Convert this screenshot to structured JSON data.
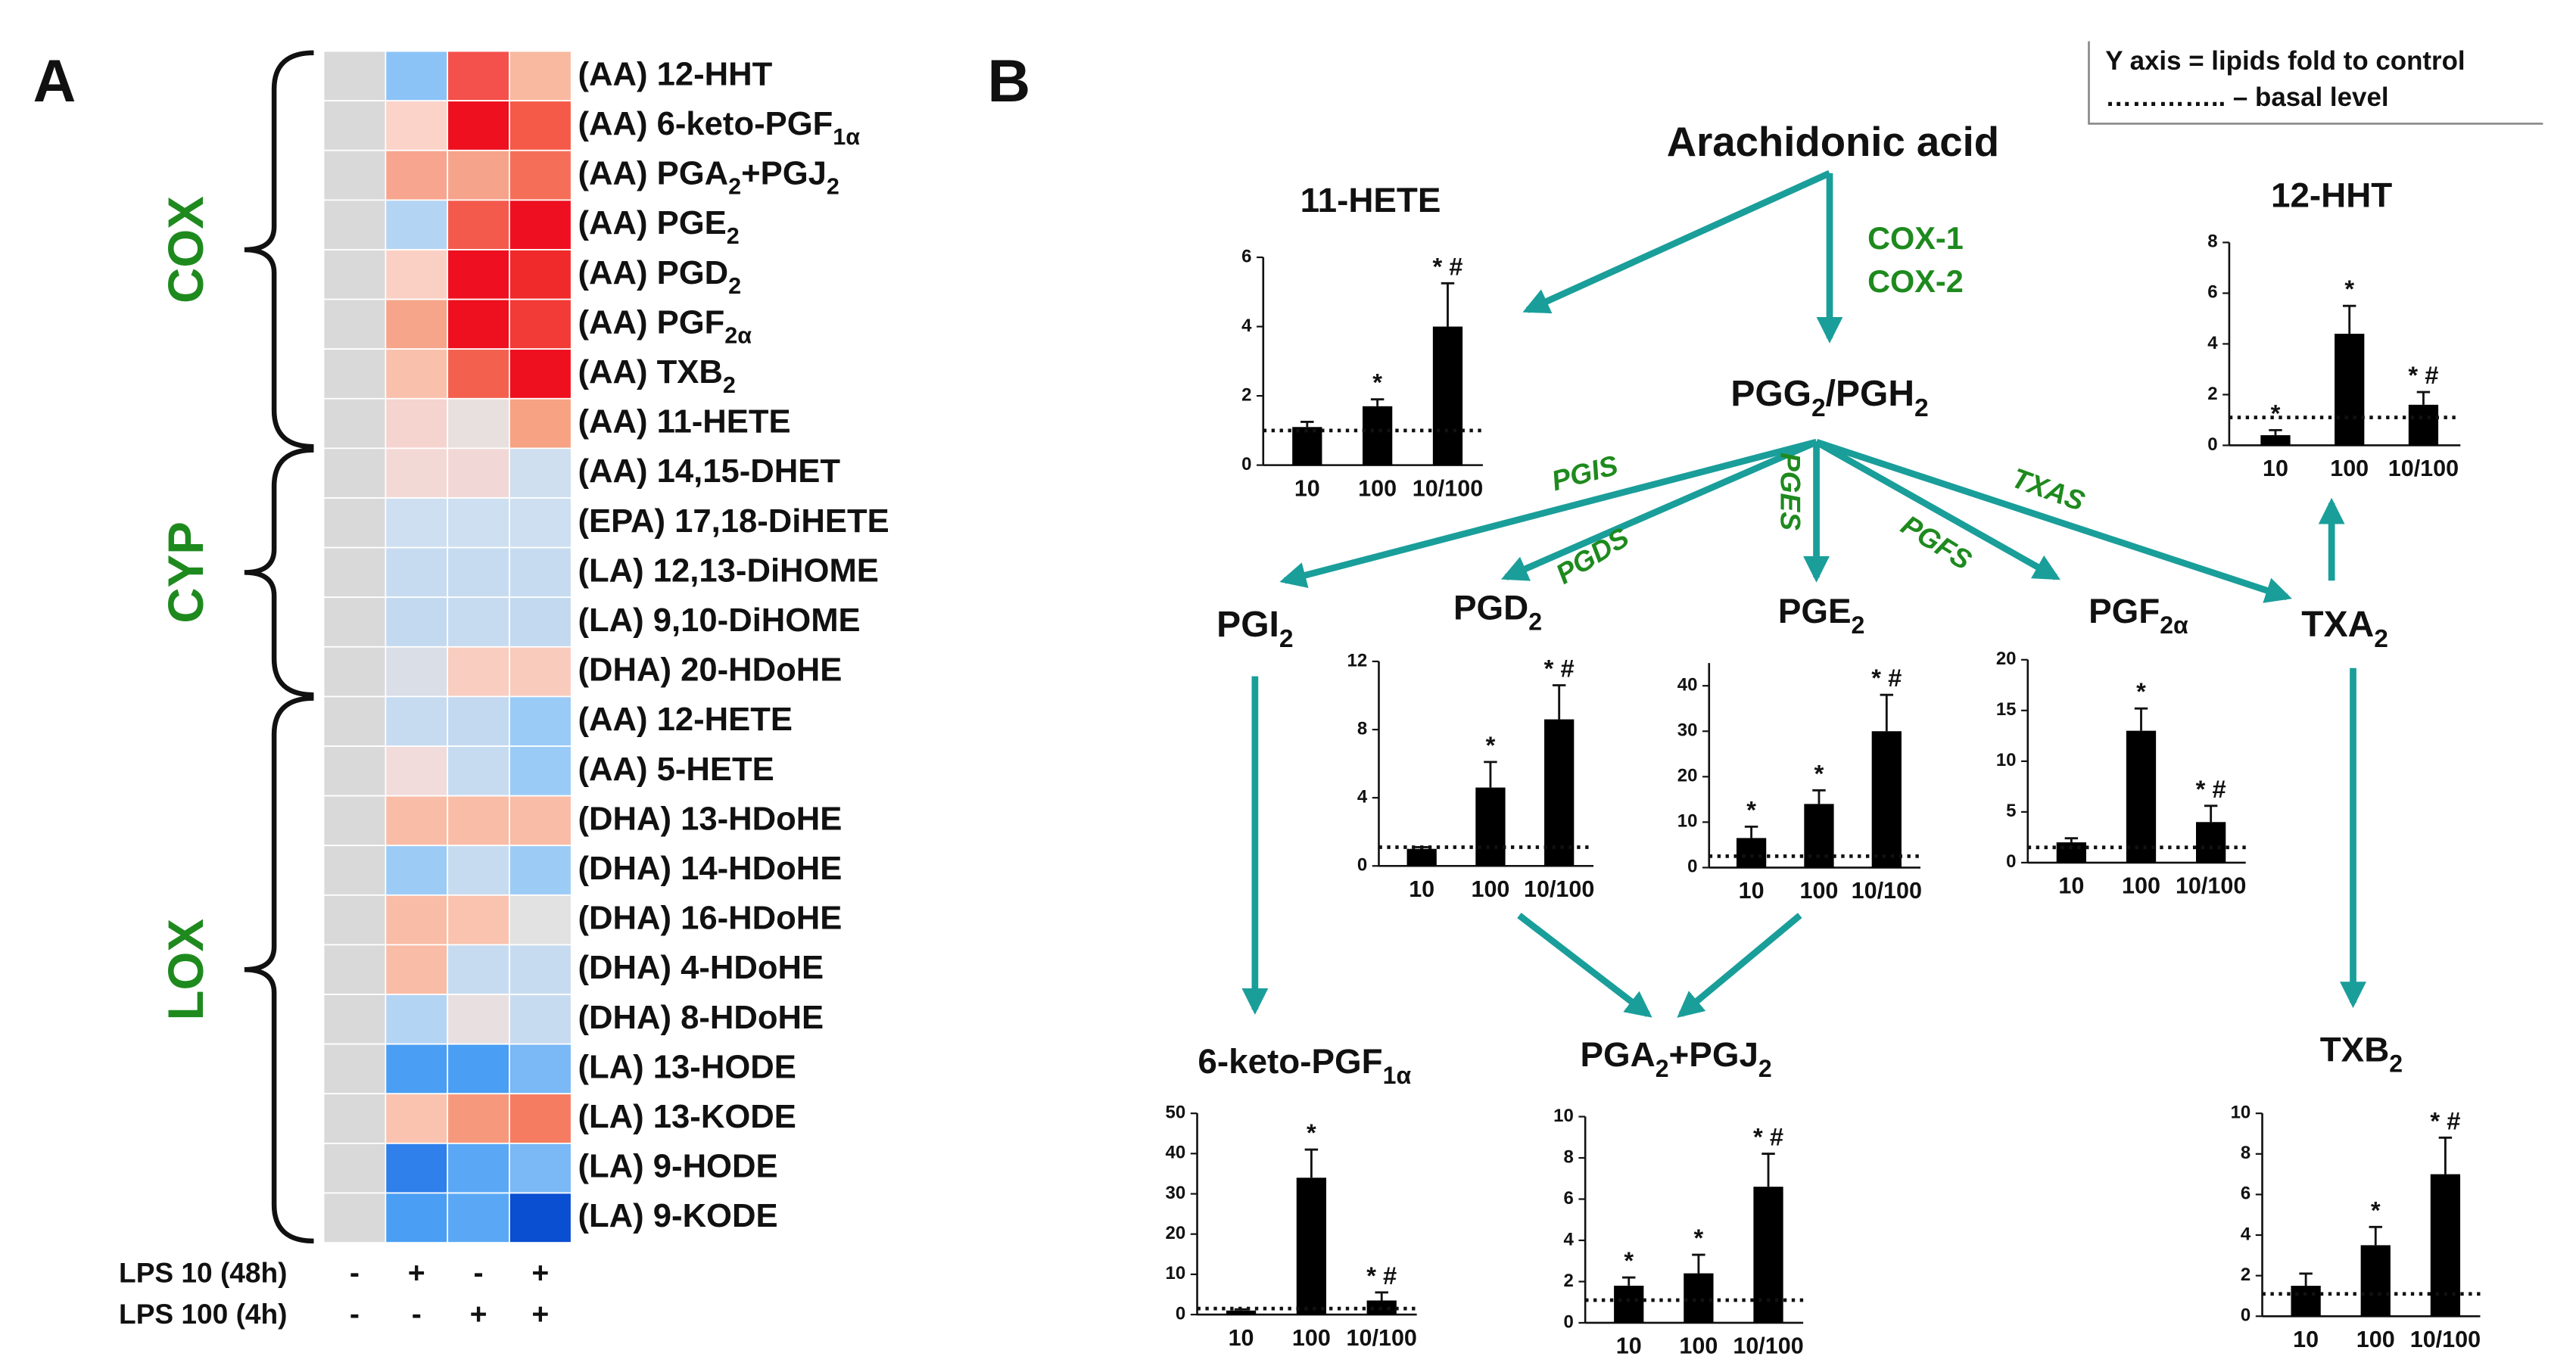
{
  "panel_labels": [
    "A",
    "B"
  ],
  "pathway": {
    "note": [
      "Y axis = lipids fold to control",
      "………….. – basal level"
    ],
    "nodes": [
      [
        "Arachidonic acid"
      ],
      [
        "PGG",
        "2",
        "/PGH",
        "2"
      ],
      [
        "PGI",
        "2"
      ],
      [
        "TXA",
        "2"
      ]
    ],
    "enzymes": [
      "COX-1",
      "COX-2",
      "PGIS",
      "PGDS",
      "PGES",
      "PGFS",
      "TXAS"
    ]
  },
  "chart_data": [
    {
      "type": "heatmap",
      "rows": [
        [
          "(AA) 12-HHT"
        ],
        [
          "(AA) 6-keto-PGF",
          "1α"
        ],
        [
          "(AA) PGA",
          "2",
          "+PGJ",
          "2"
        ],
        [
          "(AA) PGE",
          "2"
        ],
        [
          "(AA) PGD",
          "2"
        ],
        [
          "(AA) PGF",
          "2α"
        ],
        [
          "(AA) TXB",
          "2"
        ],
        [
          "(AA) 11-HETE"
        ],
        [
          "(AA) 14,15-DHET"
        ],
        [
          "(EPA) 17,18-DiHETE"
        ],
        [
          "(LA) 12,13-DiHOME"
        ],
        [
          "(LA) 9,10-DiHOME"
        ],
        [
          "(DHA) 20-HDoHE"
        ],
        [
          "(AA) 12-HETE"
        ],
        [
          "(AA) 5-HETE"
        ],
        [
          "(DHA) 13-HDoHE"
        ],
        [
          "(DHA) 14-HDoHE"
        ],
        [
          "(DHA) 16-HDoHE"
        ],
        [
          "(DHA) 4-HDoHE"
        ],
        [
          "(DHA) 8-HDoHE"
        ],
        [
          "(LA) 13-HODE"
        ],
        [
          "(LA) 13-KODE"
        ],
        [
          "(LA) 9-HODE"
        ],
        [
          "(LA) 9-KODE"
        ]
      ],
      "colors": [
        [
          "#d9d9d9",
          "#8cc3f7",
          "#f4504c",
          "#f9b9a0"
        ],
        [
          "#d9d9d9",
          "#fbd3c9",
          "#ee0f1f",
          "#f55a48"
        ],
        [
          "#d9d9d9",
          "#f7a58e",
          "#f6a38c",
          "#f56f58"
        ],
        [
          "#d9d9d9",
          "#b4d4f4",
          "#f45a4c",
          "#ee1020"
        ],
        [
          "#d9d9d9",
          "#fbd0c4",
          "#ee1020",
          "#f02a2a"
        ],
        [
          "#d9d9d9",
          "#f6a48a",
          "#ee0f1f",
          "#f23a36"
        ],
        [
          "#d9d9d9",
          "#f9c0ac",
          "#f4604e",
          "#ee0f1f"
        ],
        [
          "#d9d9d9",
          "#f5d3cf",
          "#e8e0de",
          "#f7a282"
        ],
        [
          "#d9d9d9",
          "#f3d9d6",
          "#f1d8d6",
          "#cfdff0"
        ],
        [
          "#d9d9d9",
          "#cddff0",
          "#cddff0",
          "#cddff0"
        ],
        [
          "#d9d9d9",
          "#c7dbf0",
          "#c7dbf0",
          "#c7dbf0"
        ],
        [
          "#d9d9d9",
          "#c3d9f0",
          "#c7dbf0",
          "#c3d9f0"
        ],
        [
          "#d9d9d9",
          "#dadfe7",
          "#f9cdbf",
          "#f9cbbd"
        ],
        [
          "#d9d9d9",
          "#c7dbf0",
          "#c3d9f0",
          "#9acbf7"
        ],
        [
          "#d9d9d9",
          "#f1dbdb",
          "#c7dbf0",
          "#9acbf7"
        ],
        [
          "#d9d9d9",
          "#f9bca6",
          "#f9bca6",
          "#f9bca6"
        ],
        [
          "#d9d9d9",
          "#9ccbf6",
          "#c7dbf0",
          "#9ccbf6"
        ],
        [
          "#d9d9d9",
          "#f9bca6",
          "#f9c3b0",
          "#e2e2e2"
        ],
        [
          "#d9d9d9",
          "#f9bca6",
          "#c7dbf0",
          "#c7dbf0"
        ],
        [
          "#d9d9d9",
          "#b4d4f4",
          "#e8e0e0",
          "#c7dbf0"
        ],
        [
          "#d9d9d9",
          "#4a9ef3",
          "#4a9ef3",
          "#7ab8f6"
        ],
        [
          "#d9d9d9",
          "#f9c3b0",
          "#f6987c",
          "#f57c60"
        ],
        [
          "#d9d9d9",
          "#2f80ea",
          "#5aa8f5",
          "#7ab8f6"
        ],
        [
          "#d9d9d9",
          "#4a9ef3",
          "#5aa8f5",
          "#0a4ed1"
        ]
      ],
      "groups": [
        "COX",
        "CYP",
        "LOX"
      ],
      "group_color": "#1e8a1e",
      "conditions": [
        {
          "name": "LPS 10 (48h)",
          "signs": [
            "-",
            "+",
            "-",
            "+"
          ]
        },
        {
          "name": "LPS 100 (4h)",
          "signs": [
            "-",
            "-",
            "+",
            "+"
          ]
        }
      ]
    },
    {
      "type": "bar",
      "title": [
        "11-HETE"
      ],
      "categories": [
        "10",
        "100",
        "10/100"
      ],
      "values": [
        1.1,
        1.7,
        4.0
      ],
      "errors": [
        0.15,
        0.2,
        1.25
      ],
      "annotations": [
        null,
        "*",
        "* #"
      ],
      "basal": 1,
      "ylim": [
        0,
        6
      ],
      "yticks": [
        0,
        2,
        4,
        6
      ],
      "color": "#000000"
    },
    {
      "type": "bar",
      "title": [
        "12-HHT"
      ],
      "categories": [
        "10",
        "100",
        "10/100"
      ],
      "values": [
        0.4,
        4.4,
        1.6
      ],
      "errors": [
        0.2,
        1.1,
        0.5
      ],
      "annotations": [
        "*",
        "*",
        "* #"
      ],
      "basal": 1.1,
      "ylim": [
        0,
        8
      ],
      "yticks": [
        0,
        2,
        4,
        6,
        8
      ],
      "color": "#000000"
    },
    {
      "type": "bar",
      "title": [
        "PGD",
        "2"
      ],
      "categories": [
        "10",
        "100",
        "10/100"
      ],
      "values": [
        1.0,
        4.6,
        8.6
      ],
      "errors": [
        0.1,
        1.5,
        2.0
      ],
      "annotations": [
        null,
        "*",
        "* #"
      ],
      "basal": 1.1,
      "ylim": [
        0,
        12
      ],
      "yticks": [
        0,
        4,
        8,
        12
      ],
      "color": "#000000"
    },
    {
      "type": "bar",
      "title": [
        "PGE",
        "2"
      ],
      "categories": [
        "10",
        "100",
        "10/100"
      ],
      "values": [
        6.5,
        14,
        30
      ],
      "errors": [
        2.5,
        3,
        8
      ],
      "annotations": [
        "*",
        "*",
        "* #"
      ],
      "basal": 2.5,
      "ylim": [
        0,
        45
      ],
      "yticks": [
        0,
        10,
        20,
        30,
        40
      ],
      "color": "#000000"
    },
    {
      "type": "bar",
      "title": [
        "PGF",
        "2α"
      ],
      "categories": [
        "10",
        "100",
        "10/100"
      ],
      "values": [
        2.0,
        13,
        4
      ],
      "errors": [
        0.4,
        2.2,
        1.6
      ],
      "annotations": [
        null,
        "*",
        "* #"
      ],
      "basal": 1.5,
      "ylim": [
        0,
        20
      ],
      "yticks": [
        0,
        5,
        10,
        15,
        20
      ],
      "color": "#000000"
    },
    {
      "type": "bar",
      "title": [
        "6-keto-PGF",
        "1α"
      ],
      "categories": [
        "10",
        "100",
        "10/100"
      ],
      "values": [
        1.0,
        34,
        3.5
      ],
      "errors": [
        0.3,
        7,
        2
      ],
      "annotations": [
        null,
        "*",
        "* #"
      ],
      "basal": 1.5,
      "ylim": [
        0,
        50
      ],
      "yticks": [
        0,
        10,
        20,
        30,
        40,
        50
      ],
      "color": "#000000"
    },
    {
      "type": "bar",
      "title": [
        "PGA",
        "2",
        "+PGJ",
        "2"
      ],
      "categories": [
        "10",
        "100",
        "10/100"
      ],
      "values": [
        1.8,
        2.4,
        6.6
      ],
      "errors": [
        0.4,
        0.9,
        1.6
      ],
      "annotations": [
        "*",
        "*",
        "* #"
      ],
      "basal": 1.1,
      "ylim": [
        0,
        10
      ],
      "yticks": [
        0,
        2,
        4,
        6,
        8,
        10
      ],
      "color": "#000000"
    },
    {
      "type": "bar",
      "title": [
        "TXB",
        "2"
      ],
      "categories": [
        "10",
        "100",
        "10/100"
      ],
      "values": [
        1.5,
        3.5,
        7.0
      ],
      "errors": [
        0.6,
        0.9,
        1.8
      ],
      "annotations": [
        null,
        "*",
        "* #"
      ],
      "basal": 1.1,
      "ylim": [
        0,
        10
      ],
      "yticks": [
        0,
        2,
        4,
        6,
        8,
        10
      ],
      "color": "#000000"
    }
  ]
}
